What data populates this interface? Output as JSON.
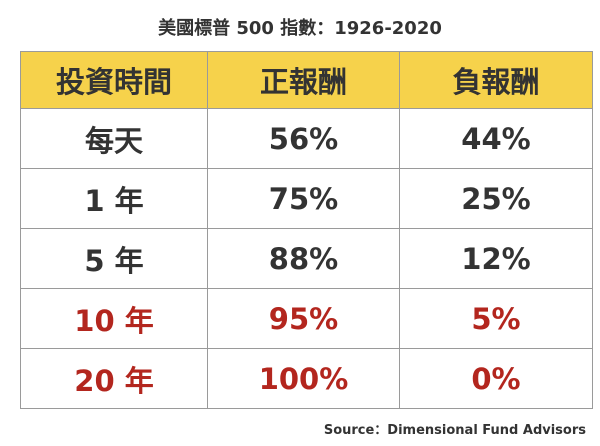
{
  "title": "美國標普 500 指數：1926-2020",
  "colors": {
    "header_bg": "#f6d24b",
    "text": "#333333",
    "highlight_text": "#b3261e",
    "border": "#9a9a9a"
  },
  "chart_data": {
    "type": "table",
    "title": "美國標普 500 指數：1926-2020",
    "columns": [
      "投資時間",
      "正報酬",
      "負報酬"
    ],
    "rows": [
      {
        "period": "每天",
        "positive": "56%",
        "negative": "44%",
        "highlight": false
      },
      {
        "period": "1 年",
        "positive": "75%",
        "negative": "25%",
        "highlight": false
      },
      {
        "period": "5 年",
        "positive": "88%",
        "negative": "12%",
        "highlight": false
      },
      {
        "period": "10 年",
        "positive": "95%",
        "negative": "5%",
        "highlight": true
      },
      {
        "period": "20 年",
        "positive": "100%",
        "negative": "0%",
        "highlight": true
      }
    ]
  },
  "source": "Source：Dimensional Fund Advisors"
}
